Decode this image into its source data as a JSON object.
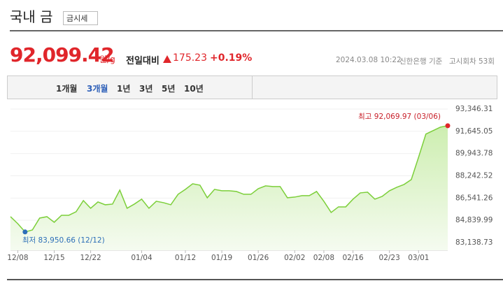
{
  "header": {
    "title": "국내 금",
    "button": "금시세",
    "price": "92,099.42",
    "unit": "원/g",
    "change_label": "전일대비",
    "change": "175.23",
    "change_pct": "+0.19%",
    "datetime": "2024.03.08 10:22",
    "source": "신한은행 기준",
    "round": "고시회차 53회"
  },
  "tabs": [
    "1개월",
    "3개월",
    "1년",
    "3년",
    "5년",
    "10년"
  ],
  "chart_data": {
    "type": "area",
    "categories": [
      null,
      "12/08",
      null,
      null,
      null,
      null,
      "12/15",
      null,
      null,
      null,
      null,
      "12/22",
      null,
      null,
      null,
      null,
      null,
      null,
      "01/04",
      null,
      null,
      null,
      null,
      null,
      "01/12",
      null,
      null,
      null,
      null,
      "01/19",
      null,
      null,
      null,
      null,
      "01/26",
      null,
      null,
      null,
      null,
      "02/02",
      null,
      null,
      null,
      "02/08",
      null,
      null,
      null,
      "02/16",
      null,
      null,
      null,
      null,
      "02/23",
      null,
      null,
      null,
      "03/01",
      null,
      null,
      null,
      null
    ],
    "values": [
      85118,
      84583,
      83950.66,
      84102,
      85011,
      85118,
      84690,
      85225,
      85225,
      85493,
      86349,
      85760,
      86242,
      86028,
      86081,
      87151,
      85760,
      86081,
      86455,
      85760,
      86295,
      86188,
      86028,
      86830,
      87205,
      87633,
      87526,
      86563,
      87205,
      87098,
      87098,
      87044,
      86830,
      86830,
      87258,
      87472,
      87419,
      87419,
      86563,
      86616,
      86723,
      86723,
      87044,
      86295,
      85439,
      85867,
      85867,
      86455,
      86937,
      86991,
      86455,
      86670,
      87098,
      87365,
      87579,
      87954,
      89666,
      91431,
      91699,
      91966,
      92069.97
    ],
    "color": "#7ccf3a",
    "ylim": [
      82550,
      93346.31
    ],
    "yticks": [
      {
        "value": 83138.73,
        "label": "83,138.73"
      },
      {
        "value": 84839.99,
        "label": "84,839.99"
      },
      {
        "value": 86541.26,
        "label": "86,541.26"
      },
      {
        "value": 88242.52,
        "label": "88,242.52"
      },
      {
        "value": 89943.78,
        "label": "89,943.78"
      },
      {
        "value": 91645.05,
        "label": "91,645.05"
      },
      {
        "value": 93346.31,
        "label": "93,346.31"
      }
    ],
    "high_label": "최고 92,069.97 (03/06)",
    "low_label": "최저 83,950.66 (12/12)"
  }
}
